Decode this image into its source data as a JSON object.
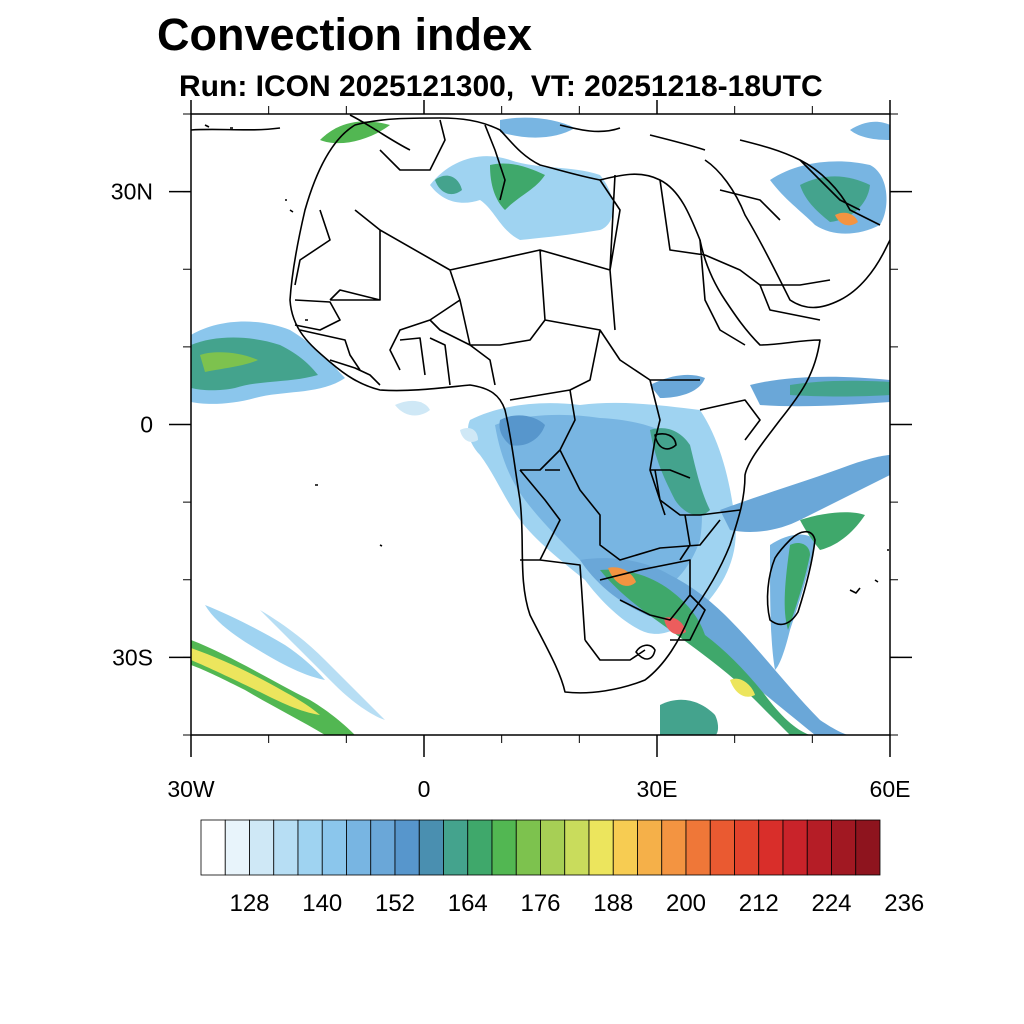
{
  "title": "Convection index",
  "subtitle": "Run: ICON 2025121300,  VT: 20251218-18UTC",
  "map": {
    "lon_range": [
      -30,
      60
    ],
    "lat_range": [
      -40,
      40
    ],
    "x_ticks": [
      {
        "lon": -30,
        "label": "30W"
      },
      {
        "lon": 0,
        "label": "0"
      },
      {
        "lon": 30,
        "label": "30E"
      },
      {
        "lon": 60,
        "label": "60E"
      }
    ],
    "y_ticks": [
      {
        "lat": 30,
        "label": "30N"
      },
      {
        "lat": 0,
        "label": "0"
      },
      {
        "lat": -30,
        "label": "30S"
      }
    ],
    "minor_lon_step": 10,
    "minor_lat_step": 10
  },
  "colorbar": {
    "colors": [
      "#ffffff",
      "#e8f4fb",
      "#cfe8f6",
      "#b7def4",
      "#9fd3f1",
      "#8bc6ec",
      "#78b5e2",
      "#6aa7d8",
      "#5796cc",
      "#4a8fb0",
      "#44a38d",
      "#3fa86b",
      "#52b752",
      "#7dc24e",
      "#a7cf55",
      "#c9dc5c",
      "#ece55d",
      "#f7cc52",
      "#f5b049",
      "#f39441",
      "#ef7738",
      "#ea5a31",
      "#e2422c",
      "#d92e2a",
      "#c9232a",
      "#b51d26",
      "#a11822",
      "#8e141e"
    ],
    "labels": [
      "128",
      "140",
      "152",
      "164",
      "176",
      "188",
      "200",
      "212",
      "224",
      "236"
    ],
    "label_start_edge": 2,
    "label_edge_step": 3
  }
}
